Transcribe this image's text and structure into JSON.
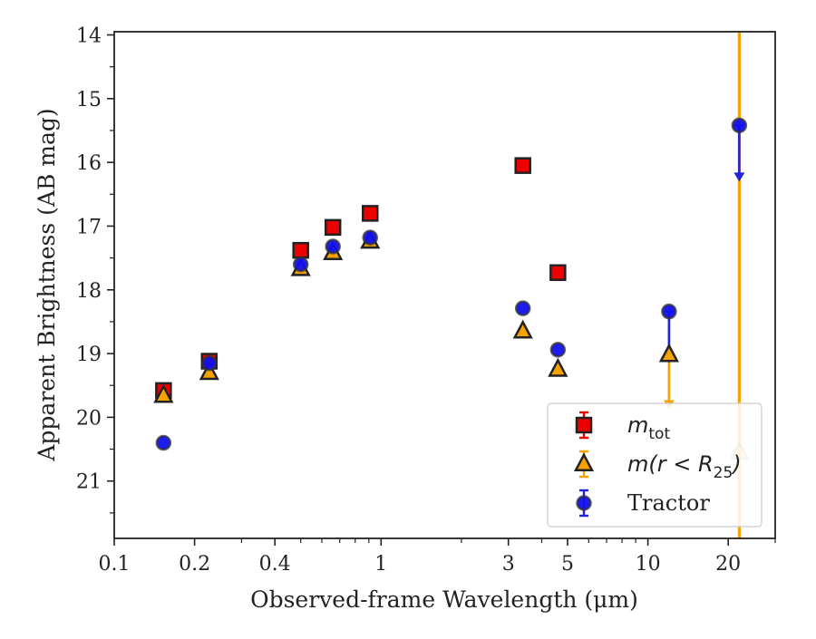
{
  "chart_data": {
    "type": "scatter",
    "xlabel": "Observed-frame Wavelength (μm)",
    "ylabel": "Apparent Brightness (AB mag)",
    "x_scale": "log",
    "xlim": [
      0.1,
      30
    ],
    "ylim": [
      21.9,
      13.95
    ],
    "y_inverted": true,
    "x_ticks": [
      {
        "value": 0.1,
        "label": "0.1"
      },
      {
        "value": 0.2,
        "label": "0.2"
      },
      {
        "value": 0.4,
        "label": "0.4"
      },
      {
        "value": 1,
        "label": "1"
      },
      {
        "value": 3,
        "label": "3"
      },
      {
        "value": 5,
        "label": "5"
      },
      {
        "value": 10,
        "label": "10"
      },
      {
        "value": 20,
        "label": "20"
      }
    ],
    "y_ticks": [
      {
        "value": 14,
        "label": "14"
      },
      {
        "value": 15,
        "label": "15"
      },
      {
        "value": 16,
        "label": "16"
      },
      {
        "value": 17,
        "label": "17"
      },
      {
        "value": 18,
        "label": "18"
      },
      {
        "value": 19,
        "label": "19"
      },
      {
        "value": 20,
        "label": "20"
      },
      {
        "value": 21,
        "label": "21"
      }
    ],
    "grid": false,
    "legend_position": "lower-right",
    "series": [
      {
        "name": "m_tot",
        "legend_label": {
          "main": "m",
          "sub": "tot"
        },
        "marker": "square",
        "color": "#ee0000",
        "points": [
          {
            "x": 0.153,
            "y": 19.58
          },
          {
            "x": 0.227,
            "y": 19.12
          },
          {
            "x": 0.5,
            "y": 17.38
          },
          {
            "x": 0.66,
            "y": 17.02
          },
          {
            "x": 0.91,
            "y": 16.8
          },
          {
            "x": 3.4,
            "y": 16.05
          },
          {
            "x": 4.6,
            "y": 17.73
          }
        ]
      },
      {
        "name": "m(r<R_25)",
        "legend_label": {
          "main": "m(r < R",
          "sub": "25",
          "end": ")"
        },
        "marker": "triangle",
        "color": "#f5a100",
        "points": [
          {
            "x": 0.153,
            "y": 19.66
          },
          {
            "x": 0.227,
            "y": 19.3
          },
          {
            "x": 0.5,
            "y": 17.67
          },
          {
            "x": 0.66,
            "y": 17.42
          },
          {
            "x": 0.91,
            "y": 17.24
          },
          {
            "x": 3.4,
            "y": 18.65
          },
          {
            "x": 4.6,
            "y": 19.25
          },
          {
            "x": 12.0,
            "y": 19.02,
            "upper_limit": true
          },
          {
            "x": 22.0,
            "y": 20.55,
            "upper_limit": true
          }
        ]
      },
      {
        "name": "Tractor",
        "legend_label": {
          "main": "Tractor"
        },
        "marker": "circle",
        "color": "#1010ee",
        "points": [
          {
            "x": 0.153,
            "y": 20.4
          },
          {
            "x": 0.227,
            "y": 19.15
          },
          {
            "x": 0.5,
            "y": 17.6
          },
          {
            "x": 0.66,
            "y": 17.32
          },
          {
            "x": 0.91,
            "y": 17.18
          },
          {
            "x": 3.4,
            "y": 18.29
          },
          {
            "x": 4.6,
            "y": 18.94
          },
          {
            "x": 12.0,
            "y": 18.34,
            "upper_limit": true
          },
          {
            "x": 22.0,
            "y": 15.42,
            "upper_limit": true
          }
        ]
      }
    ]
  }
}
